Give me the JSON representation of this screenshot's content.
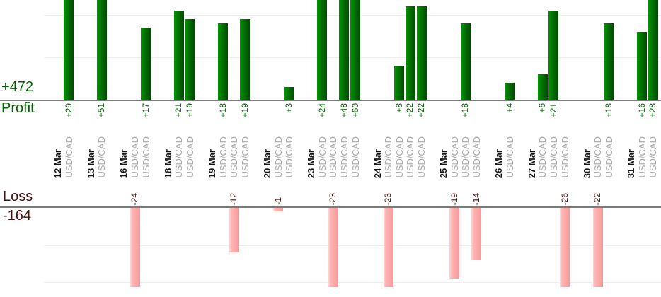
{
  "chart_data": {
    "type": "bar",
    "title": "",
    "legend": "none",
    "grid": true,
    "panels": [
      {
        "axis_label": "Profit",
        "total_label": "+472",
        "gridline_values": [
          10,
          20
        ],
        "bars_direction": "up"
      },
      {
        "axis_label": "Loss",
        "total_label": "-164",
        "gridline_values": [
          -10,
          -20
        ],
        "bars_direction": "down"
      }
    ],
    "groups": [
      {
        "date": "12 Mar",
        "trades": [
          {
            "instrument": "USD/CAD",
            "value": 29,
            "label": "+29"
          }
        ]
      },
      {
        "date": "13 Mar",
        "trades": [
          {
            "instrument": "USD/CAD",
            "value": 51,
            "label": "+51"
          }
        ]
      },
      {
        "date": "16 Mar",
        "trades": [
          {
            "instrument": "USD/CAD",
            "value": -24,
            "label": "-24"
          },
          {
            "instrument": "USD/CAD",
            "value": 17,
            "label": "+17"
          }
        ]
      },
      {
        "date": "18 Mar",
        "trades": [
          {
            "instrument": "USD/CAD",
            "value": 21,
            "label": "+21"
          },
          {
            "instrument": "USD/CAD",
            "value": 19,
            "label": "+19"
          }
        ]
      },
      {
        "date": "19 Mar",
        "trades": [
          {
            "instrument": "USD/CAD",
            "value": 18,
            "label": "+18"
          },
          {
            "instrument": "USD/CAD",
            "value": -12,
            "label": "-12"
          },
          {
            "instrument": "USD/CAD",
            "value": 19,
            "label": "+19"
          }
        ]
      },
      {
        "date": "20 Mar",
        "trades": [
          {
            "instrument": "USD/CAD",
            "value": -1,
            "label": "-1"
          },
          {
            "instrument": "USD/CAD",
            "value": 3,
            "label": "+3"
          }
        ]
      },
      {
        "date": "23 Mar",
        "trades": [
          {
            "instrument": "USD/CAD",
            "value": 24,
            "label": "+24"
          },
          {
            "instrument": "USD/CAD",
            "value": -23,
            "label": "-23"
          },
          {
            "instrument": "USD/CAD",
            "value": 48,
            "label": "+48"
          },
          {
            "instrument": "USD/CAD",
            "value": 60,
            "label": "+60"
          }
        ]
      },
      {
        "date": "24 Mar",
        "trades": [
          {
            "instrument": "USD/CAD",
            "value": -23,
            "label": "-23"
          },
          {
            "instrument": "USD/CAD",
            "value": 8,
            "label": "+8"
          },
          {
            "instrument": "USD/CAD",
            "value": 22,
            "label": "+22"
          },
          {
            "instrument": "USD/CAD",
            "value": 22,
            "label": "+22"
          }
        ]
      },
      {
        "date": "25 Mar",
        "trades": [
          {
            "instrument": "USD/CAD",
            "value": -19,
            "label": "-19"
          },
          {
            "instrument": "USD/CAD",
            "value": 18,
            "label": "+18"
          },
          {
            "instrument": "USD/CAD",
            "value": -14,
            "label": "-14"
          }
        ]
      },
      {
        "date": "26 Mar",
        "trades": [
          {
            "instrument": "USD/CAD",
            "value": 4,
            "label": "+4"
          }
        ]
      },
      {
        "date": "27 Mar",
        "trades": [
          {
            "instrument": "USD/CAD",
            "value": 6,
            "label": "+6"
          },
          {
            "instrument": "USD/CAD",
            "value": 21,
            "label": "+21"
          },
          {
            "instrument": "USD/CAD",
            "value": -26,
            "label": "-26"
          }
        ]
      },
      {
        "date": "30 Mar",
        "trades": [
          {
            "instrument": "USD/CAD",
            "value": -22,
            "label": "-22"
          },
          {
            "instrument": "USD/CAD",
            "value": 18,
            "label": "+18"
          }
        ]
      },
      {
        "date": "31 Mar",
        "trades": [
          {
            "instrument": "USD/CAD",
            "value": 16,
            "label": "+16"
          },
          {
            "instrument": "USD/CAD",
            "value": 28,
            "label": "+28"
          }
        ]
      }
    ]
  },
  "colors": {
    "profit_bar_gradient": [
      "#029602",
      "#027202",
      "#014a01"
    ],
    "loss_bar_gradient": [
      "#ffd8d8",
      "#ffb4b4",
      "#f8a2a2",
      "#f29797"
    ],
    "profit_text": "#016001",
    "loss_text": "#421111",
    "date_text": "#161616",
    "instrument_text": "#a9a9a9",
    "axis_line": "#7b7b7b",
    "gridline": "#ededed"
  }
}
